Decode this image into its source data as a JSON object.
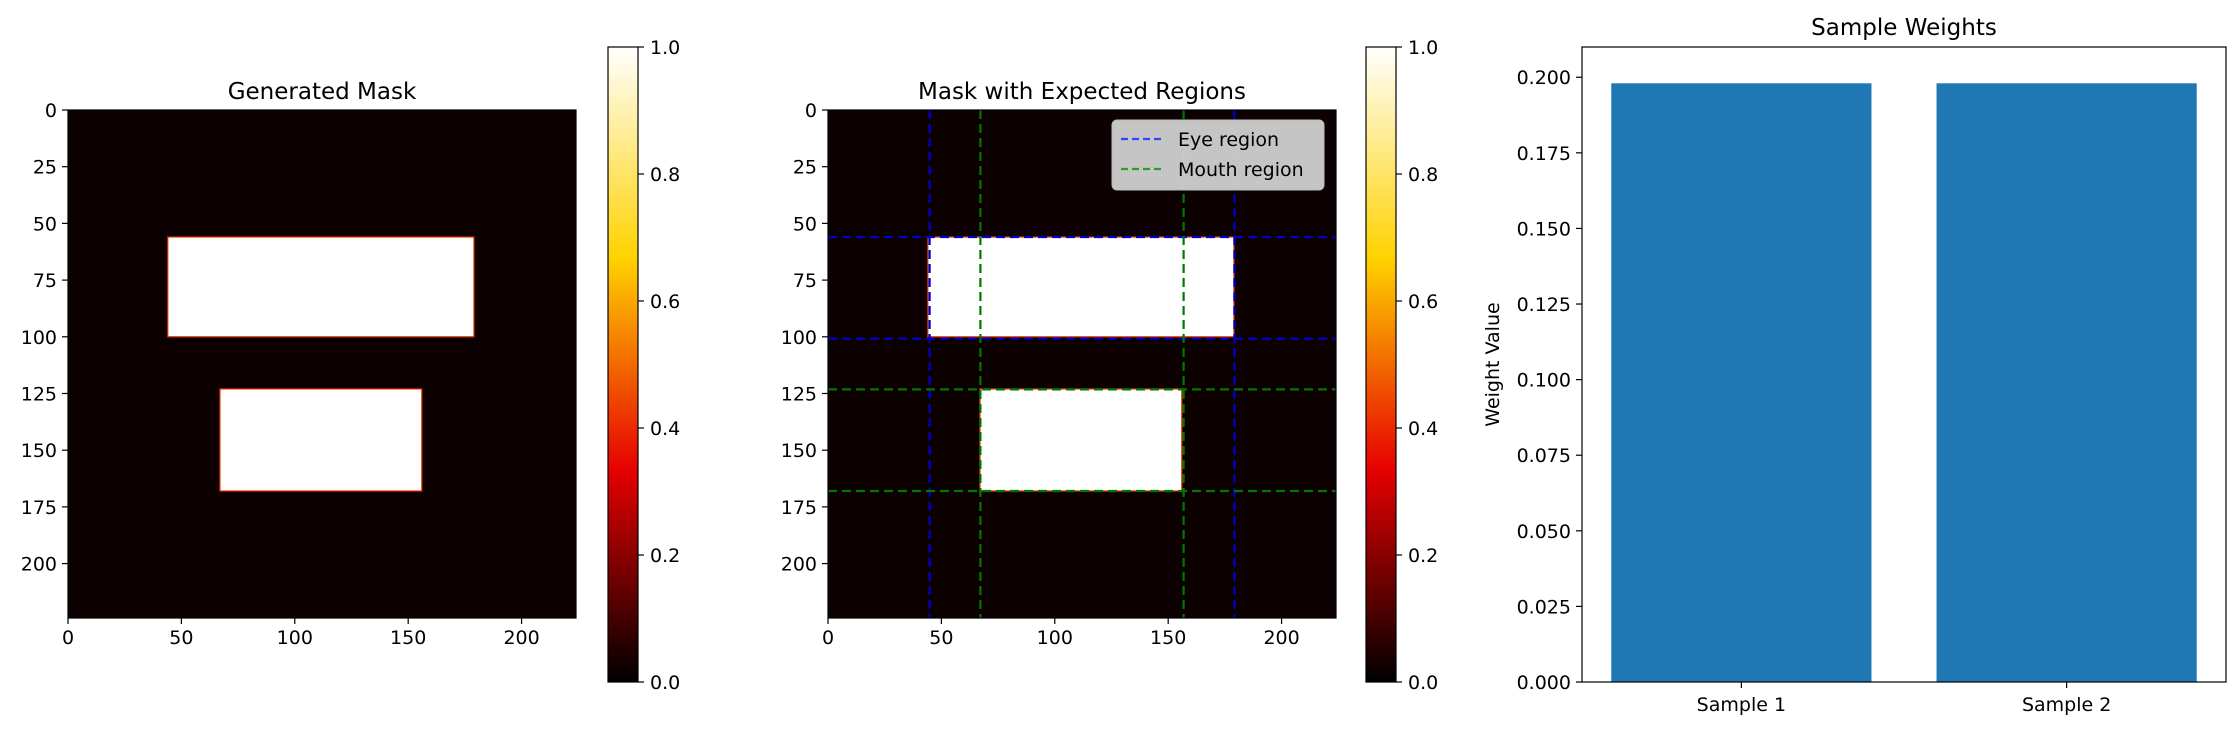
{
  "colors": {
    "hot_stops": [
      "#000000",
      "#e60000",
      "#ffd200",
      "#ffffff"
    ],
    "mask_background": "#0d0000",
    "mask_foreground": "#ffffff",
    "mask_edge": "#e03000",
    "eye_line": "#0000cc",
    "mouth_line": "#007700",
    "eye_legend": "#3344ff",
    "mouth_legend": "#2a9d2a",
    "bar": "#1f77b4"
  },
  "chart_data": [
    {
      "type": "heatmap",
      "title": "Generated Mask",
      "xlim": [
        0,
        224
      ],
      "ylim": [
        224,
        0
      ],
      "xticks": [
        0,
        50,
        100,
        150,
        200
      ],
      "yticks": [
        0,
        25,
        50,
        75,
        100,
        125,
        150,
        175,
        200
      ],
      "background_value": 0,
      "rects": [
        {
          "x0": 44,
          "x1": 179,
          "y0": 56,
          "y1": 100,
          "value": 1
        },
        {
          "x0": 67,
          "x1": 156,
          "y0": 123,
          "y1": 168,
          "value": 1
        }
      ],
      "colorbar": {
        "min": 0,
        "max": 1,
        "ticks": [
          "0.0",
          "0.2",
          "0.4",
          "0.6",
          "0.8",
          "1.0"
        ],
        "cmap": "hot"
      }
    },
    {
      "type": "heatmap",
      "title": "Mask with Expected Regions",
      "xlim": [
        0,
        224
      ],
      "ylim": [
        224,
        0
      ],
      "xticks": [
        0,
        50,
        100,
        150,
        200
      ],
      "yticks": [
        0,
        25,
        50,
        75,
        100,
        125,
        150,
        175,
        200
      ],
      "background_value": 0,
      "rects": [
        {
          "x0": 44,
          "x1": 179,
          "y0": 56,
          "y1": 100,
          "value": 1
        },
        {
          "x0": 67,
          "x1": 156,
          "y0": 123,
          "y1": 168,
          "value": 1
        }
      ],
      "series": [
        {
          "name": "Eye region",
          "style": "dashed",
          "vlines": [
            44.8,
            179.2
          ],
          "hlines": [
            56,
            100.8
          ]
        },
        {
          "name": "Mouth region",
          "style": "dashed",
          "vlines": [
            67.2,
            156.8
          ],
          "hlines": [
            123.2,
            168
          ]
        }
      ],
      "legend": "top-right",
      "colorbar": {
        "min": 0,
        "max": 1,
        "ticks": [
          "0.0",
          "0.2",
          "0.4",
          "0.6",
          "0.8",
          "1.0"
        ],
        "cmap": "hot"
      }
    },
    {
      "type": "bar",
      "title": "Sample Weights",
      "categories": [
        "Sample 1",
        "Sample 2"
      ],
      "values": [
        0.198,
        0.198
      ],
      "ylabel": "Weight Value",
      "xlabel": "",
      "ylim": [
        0,
        0.21
      ],
      "yticks": [
        "0.000",
        "0.025",
        "0.050",
        "0.075",
        "0.100",
        "0.125",
        "0.150",
        "0.175",
        "0.200"
      ]
    }
  ]
}
